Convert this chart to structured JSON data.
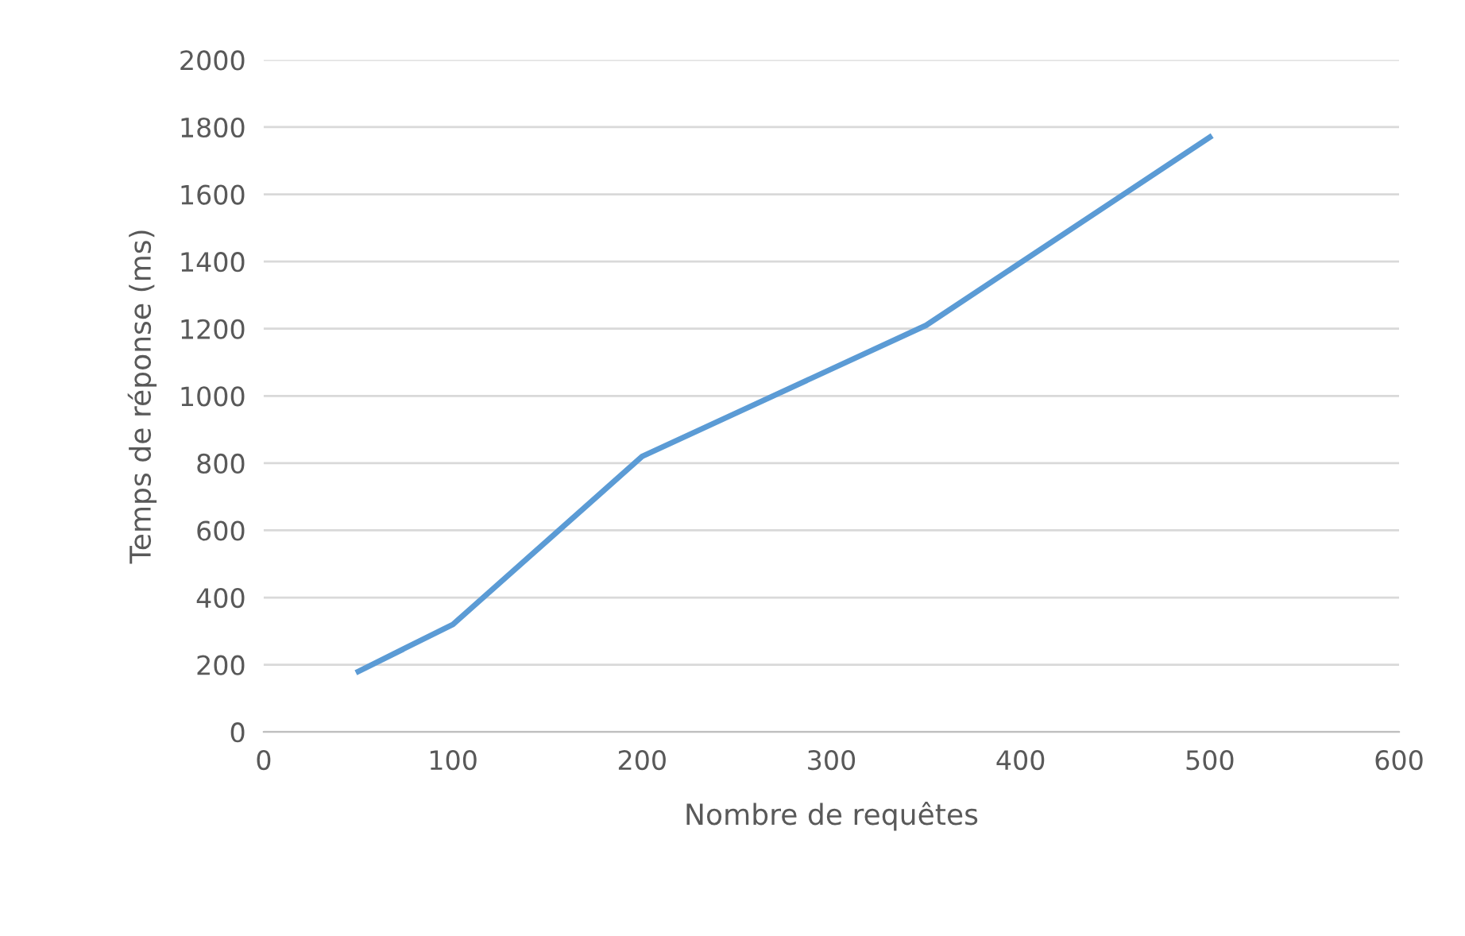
{
  "chart_data": {
    "type": "line",
    "xlabel": "Nombre de requêtes",
    "ylabel": "Temps de réponse (ms)",
    "x": [
      50,
      100,
      200,
      350,
      500
    ],
    "series": [
      {
        "color": "#5b9bd5",
        "values": [
          180,
          320,
          820,
          1210,
          1770
        ]
      }
    ],
    "xlim": [
      0,
      600
    ],
    "xticks": [
      0,
      100,
      200,
      300,
      400,
      500,
      600
    ],
    "ylim": [
      0,
      2000
    ],
    "yticks": [
      0,
      200,
      400,
      600,
      800,
      1000,
      1200,
      1400,
      1600,
      1800,
      2000
    ],
    "grid": "y",
    "marker": "none",
    "line_style": "solid"
  }
}
